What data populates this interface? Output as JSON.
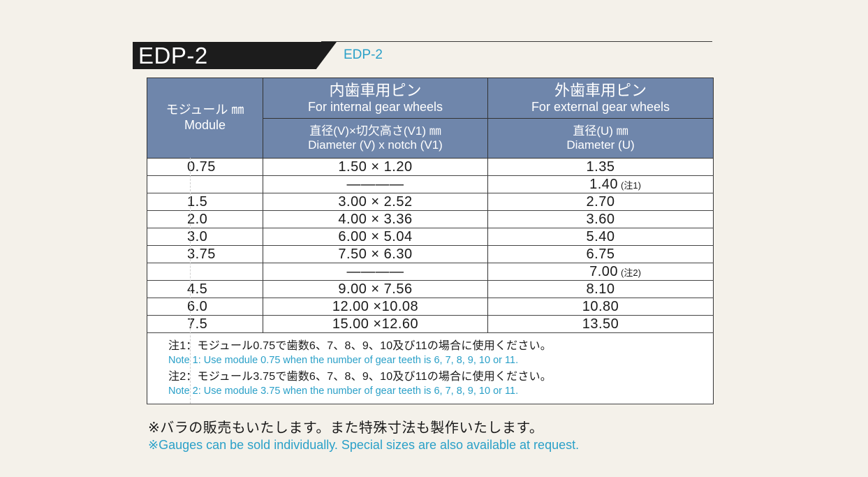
{
  "header": {
    "badge": "EDP-2",
    "subtitle": "EDP-2"
  },
  "table": {
    "module_col": {
      "jp": "モジュール ㎜",
      "en": "Module"
    },
    "internal_col": {
      "jp": "内歯車用ピン",
      "en": "For internal gear wheels",
      "sub_jp": "直径(V)×切欠高さ(V1) ㎜",
      "sub_en": "Diameter (V) x notch (V1)"
    },
    "external_col": {
      "jp": "外歯車用ピン",
      "en": "For external gear wheels",
      "sub_jp": "直径(U) ㎜",
      "sub_en": "Diameter (U)"
    },
    "rows": [
      {
        "module": "0.75",
        "internal": "1.50 ×  1.20",
        "external": "1.35",
        "note": ""
      },
      {
        "module": "",
        "internal": "————",
        "external": "1.40",
        "note": "(注1)"
      },
      {
        "module": "1.5",
        "internal": "3.00 ×  2.52",
        "external": "2.70",
        "note": ""
      },
      {
        "module": "2.0",
        "internal": "4.00 ×  3.36",
        "external": "3.60",
        "note": ""
      },
      {
        "module": "3.0",
        "internal": "6.00 ×  5.04",
        "external": "5.40",
        "note": ""
      },
      {
        "module": "3.75",
        "internal": "7.50 ×  6.30",
        "external": "6.75",
        "note": ""
      },
      {
        "module": "",
        "internal": "————",
        "external": "7.00",
        "note": "(注2)"
      },
      {
        "module": "4.5",
        "internal": "9.00 ×  7.56",
        "external": "8.10",
        "note": ""
      },
      {
        "module": "6.0",
        "internal": "12.00 ×10.08",
        "external": "10.80",
        "note": ""
      },
      {
        "module": "7.5",
        "internal": "15.00 ×12.60",
        "external": "13.50",
        "note": ""
      }
    ],
    "notes": {
      "n1_jp": "注1：モジュール0.75で歯数6、7、8、9、10及び11の場合に使用ください。",
      "n1_en": "Note 1: Use module 0.75 when the number of gear teeth is 6, 7, 8, 9, 10 or 11.",
      "n2_jp": "注2：モジュール3.75で歯数6、7、8、9、10及び11の場合に使用ください。",
      "n2_en": "Note 2: Use module 3.75 when the number of gear teeth is 6, 7, 8, 9, 10 or 11."
    }
  },
  "footer": {
    "jp": "※バラの販売もいたします。また特殊寸法も製作いたします。",
    "en": "※Gauges can be sold individually. Special sizes are also available at request."
  },
  "colors": {
    "header_bg": "#6f86ab",
    "accent_blue": "#2aa0c8",
    "badge_bg": "#1c1c1c",
    "page_bg": "#f4f1ea"
  }
}
